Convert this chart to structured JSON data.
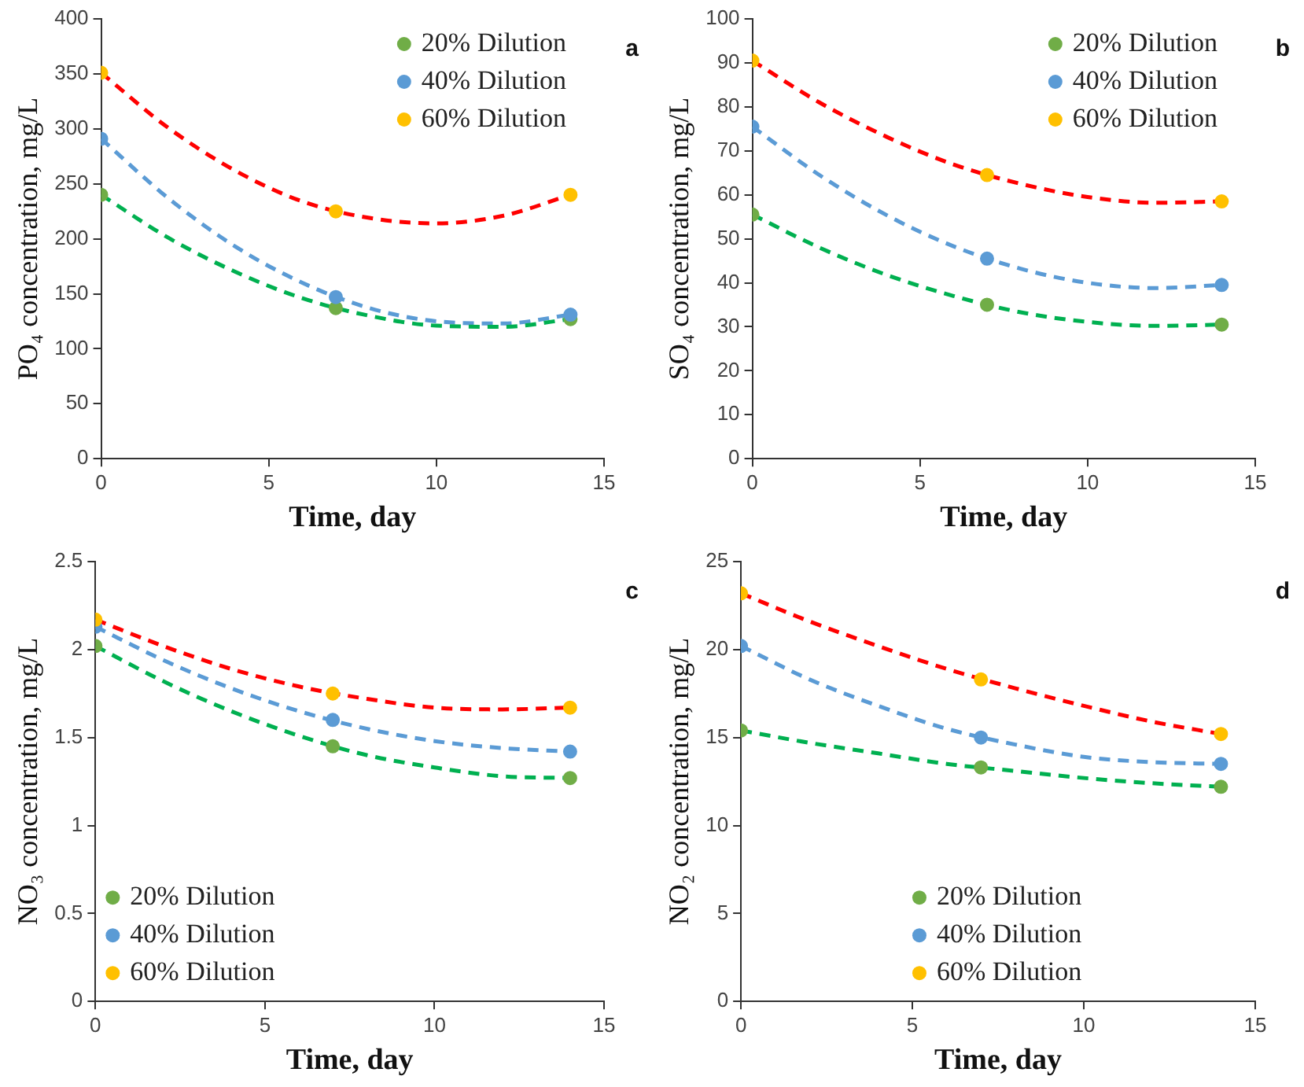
{
  "chart_data": [
    {
      "type": "scatter",
      "xlabel": "Time, day",
      "ylabel": "PO₄ concentration, mg/L",
      "xlim": [
        0,
        15
      ],
      "xticks": [
        0,
        5,
        10,
        15
      ],
      "ylim": [
        0,
        400
      ],
      "yticks": [
        0,
        50,
        100,
        150,
        200,
        250,
        300,
        350,
        400
      ],
      "legend": "top right",
      "grid": false,
      "marker": "circle",
      "annotations": [
        "a"
      ],
      "series": [
        {
          "name": "20% Dilution",
          "color": "#70ad47",
          "x": [
            0,
            7,
            14
          ],
          "values": [
            240,
            137,
            127
          ]
        },
        {
          "name": "40% Dilution",
          "color": "#5b9bd5",
          "x": [
            0,
            7,
            14
          ],
          "values": [
            291,
            147,
            131
          ]
        },
        {
          "name": "60% Dilution",
          "color": "#ffc000",
          "x": [
            0,
            7,
            14
          ],
          "values": [
            351,
            225,
            240
          ]
        },
        {
          "type": "line",
          "color": "#00b050",
          "line_style": "dashed",
          "marker": "none",
          "x": [
            0,
            2,
            4,
            6,
            8,
            10,
            12,
            14
          ],
          "values": [
            240,
            201,
            170,
            146,
            130,
            121,
            120,
            127
          ]
        },
        {
          "type": "line",
          "color": "#5b9bd5",
          "line_style": "dashed",
          "marker": "none",
          "x": [
            0,
            2,
            4,
            6,
            8,
            10,
            12,
            14
          ],
          "values": [
            291,
            237,
            193,
            160,
            137,
            125,
            123,
            131
          ]
        },
        {
          "type": "line",
          "color": "#ff0000",
          "line_style": "dashed",
          "marker": "none",
          "x": [
            0,
            2,
            4,
            6,
            8,
            10,
            12,
            14
          ],
          "values": [
            351,
            301,
            262,
            234,
            219,
            214,
            221,
            240
          ]
        }
      ]
    },
    {
      "type": "scatter",
      "xlabel": "Time, day",
      "ylabel": "SO₄ concentration, mg/L",
      "xlim": [
        0,
        15
      ],
      "xticks": [
        0,
        5,
        10,
        15
      ],
      "ylim": [
        0,
        100
      ],
      "yticks": [
        0,
        10,
        20,
        30,
        40,
        50,
        60,
        70,
        80,
        90,
        100
      ],
      "legend": "top right",
      "grid": false,
      "marker": "circle",
      "annotations": [
        "b"
      ],
      "series": [
        {
          "name": "20% Dilution",
          "color": "#70ad47",
          "x": [
            0,
            7,
            14
          ],
          "values": [
            55.5,
            35,
            30.5
          ]
        },
        {
          "name": "40% Dilution",
          "color": "#5b9bd5",
          "x": [
            0,
            7,
            14
          ],
          "values": [
            75.5,
            45.5,
            39.5
          ]
        },
        {
          "name": "60% Dilution",
          "color": "#ffc000",
          "x": [
            0,
            7,
            14
          ],
          "values": [
            90.5,
            64.5,
            58.5
          ]
        },
        {
          "type": "line",
          "color": "#00b050",
          "line_style": "dashed",
          "marker": "none",
          "x": [
            0,
            2,
            4,
            6,
            8,
            10,
            12,
            14
          ],
          "values": [
            55.5,
            48.0,
            41.8,
            37.0,
            33.3,
            31.1,
            30.2,
            30.5
          ]
        },
        {
          "type": "line",
          "color": "#5b9bd5",
          "line_style": "dashed",
          "marker": "none",
          "x": [
            0,
            2,
            4,
            6,
            8,
            10,
            12,
            14
          ],
          "values": [
            75.5,
            64.5,
            55.4,
            48.3,
            43.2,
            40.0,
            38.8,
            39.5
          ]
        },
        {
          "type": "line",
          "color": "#ff0000",
          "line_style": "dashed",
          "marker": "none",
          "x": [
            0,
            2,
            4,
            6,
            8,
            10,
            12,
            14
          ],
          "values": [
            90.5,
            81.0,
            73.2,
            66.9,
            62.5,
            59.5,
            58.2,
            58.5
          ]
        }
      ]
    },
    {
      "type": "scatter",
      "xlabel": "Time, day",
      "ylabel": "NO₃ concentration, mg/L",
      "xlim": [
        0,
        15
      ],
      "xticks": [
        0,
        5,
        10,
        15
      ],
      "ylim": [
        0,
        2.5
      ],
      "yticks": [
        0,
        0.5,
        1,
        1.5,
        2,
        2.5
      ],
      "legend": "bottom left",
      "grid": false,
      "marker": "circle",
      "annotations": [
        "c"
      ],
      "series": [
        {
          "name": "20% Dilution",
          "color": "#70ad47",
          "x": [
            0,
            7,
            14
          ],
          "values": [
            2.02,
            1.45,
            1.27
          ]
        },
        {
          "name": "40% Dilution",
          "color": "#5b9bd5",
          "x": [
            0,
            7,
            14
          ],
          "values": [
            2.13,
            1.6,
            1.42
          ]
        },
        {
          "name": "60% Dilution",
          "color": "#ffc000",
          "x": [
            0,
            7,
            14
          ],
          "values": [
            2.17,
            1.75,
            1.67
          ]
        },
        {
          "type": "line",
          "color": "#00b050",
          "line_style": "dashed",
          "marker": "none",
          "x": [
            0,
            2,
            4,
            6,
            8,
            10,
            12,
            14
          ],
          "values": [
            2.02,
            1.82,
            1.65,
            1.51,
            1.4,
            1.33,
            1.28,
            1.27
          ]
        },
        {
          "type": "line",
          "color": "#5b9bd5",
          "line_style": "dashed",
          "marker": "none",
          "x": [
            0,
            2,
            4,
            6,
            8,
            10,
            12,
            14
          ],
          "values": [
            2.13,
            1.94,
            1.78,
            1.65,
            1.55,
            1.48,
            1.44,
            1.42
          ]
        },
        {
          "type": "line",
          "color": "#ff0000",
          "line_style": "dashed",
          "marker": "none",
          "x": [
            0,
            2,
            4,
            6,
            8,
            10,
            12,
            14
          ],
          "values": [
            2.17,
            2.02,
            1.89,
            1.79,
            1.72,
            1.67,
            1.66,
            1.67
          ]
        }
      ]
    },
    {
      "type": "scatter",
      "xlabel": "Time, day",
      "ylabel": "NO₂ concentration, mg/L",
      "xlim": [
        0,
        15
      ],
      "xticks": [
        0,
        5,
        10,
        15
      ],
      "ylim": [
        0,
        25
      ],
      "yticks": [
        0,
        5,
        10,
        15,
        20,
        25
      ],
      "legend": "bottom",
      "grid": false,
      "marker": "circle",
      "annotations": [
        "d"
      ],
      "series": [
        {
          "name": "20% Dilution",
          "color": "#70ad47",
          "x": [
            0,
            7,
            14
          ],
          "values": [
            15.4,
            13.3,
            12.2
          ]
        },
        {
          "name": "40% Dilution",
          "color": "#5b9bd5",
          "x": [
            0,
            7,
            14
          ],
          "values": [
            20.2,
            15.0,
            13.5
          ]
        },
        {
          "name": "60% Dilution",
          "color": "#ffc000",
          "x": [
            0,
            7,
            14
          ],
          "values": [
            23.2,
            18.3,
            15.2
          ]
        },
        {
          "type": "line",
          "color": "#00b050",
          "line_style": "dashed",
          "marker": "none",
          "x": [
            0,
            2,
            4,
            6,
            8,
            10,
            12,
            14
          ],
          "values": [
            15.4,
            14.7,
            14.1,
            13.5,
            13.1,
            12.7,
            12.4,
            12.2
          ]
        },
        {
          "type": "line",
          "color": "#5b9bd5",
          "line_style": "dashed",
          "marker": "none",
          "x": [
            0,
            2,
            4,
            6,
            8,
            10,
            12,
            14
          ],
          "values": [
            20.2,
            18.3,
            16.8,
            15.5,
            14.6,
            13.9,
            13.6,
            13.5
          ]
        },
        {
          "type": "line",
          "color": "#ff0000",
          "line_style": "dashed",
          "marker": "none",
          "x": [
            0,
            2,
            4,
            6,
            8,
            10,
            12,
            14
          ],
          "values": [
            23.2,
            21.6,
            20.2,
            18.9,
            17.8,
            16.8,
            15.9,
            15.2
          ]
        }
      ]
    }
  ]
}
